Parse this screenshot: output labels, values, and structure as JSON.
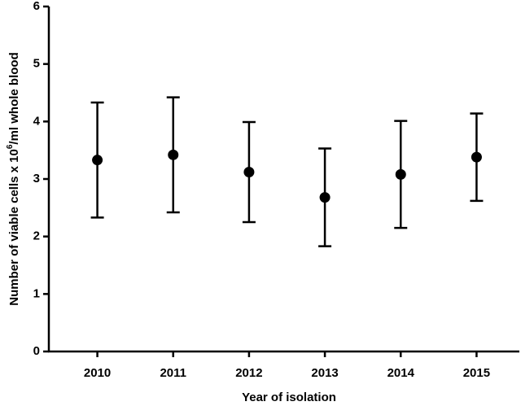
{
  "chart_data": {
    "type": "errorbar",
    "x_label": "Year of isolation",
    "y_label": [
      "Number of viable cells x 10",
      "6",
      "/ml whole blood"
    ],
    "categories": [
      "2010",
      "2011",
      "2012",
      "2013",
      "2014",
      "2015"
    ],
    "values": [
      3.33,
      3.42,
      3.12,
      2.68,
      3.08,
      3.38
    ],
    "errors": [
      1.0,
      1.0,
      0.87,
      0.85,
      0.93,
      0.76
    ],
    "color": "#000000",
    "ylim": [
      0,
      6
    ],
    "yticks": [
      0,
      1,
      2,
      3,
      4,
      5,
      6
    ]
  }
}
